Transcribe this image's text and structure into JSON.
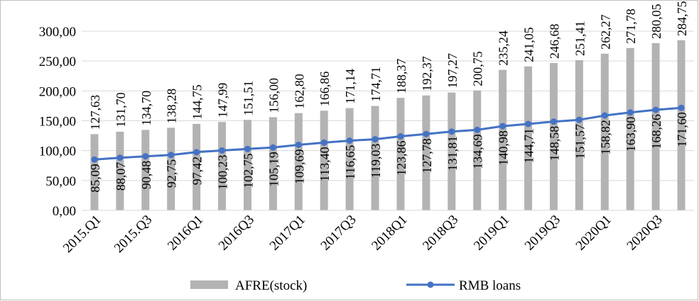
{
  "chart_data": {
    "type": "bar",
    "categories": [
      "2015.Q1",
      "2015.Q2",
      "2015.Q3",
      "2015.Q4",
      "2016Q1",
      "2016Q2",
      "2016Q3",
      "2016Q4",
      "2017Q1",
      "2017Q2",
      "2017Q3",
      "2017Q4",
      "2018Q1",
      "2018Q2",
      "2018Q3",
      "2018Q4",
      "2019Q1",
      "2019Q2",
      "2019Q3",
      "2019Q4",
      "2020Q1",
      "2020Q2",
      "2020Q3",
      "2020Q4"
    ],
    "x_tick_labels": [
      "2015.Q1",
      "2015.Q3",
      "2016Q1",
      "2016Q3",
      "2017Q1",
      "2017Q3",
      "2018Q1",
      "2018Q3",
      "2019Q1",
      "2019Q3",
      "2020Q1",
      "2020Q3"
    ],
    "series": [
      {
        "name": "AFRE(stock)",
        "type": "bar",
        "color": "#b3b3b3",
        "values": [
          127.63,
          131.7,
          134.7,
          138.28,
          144.75,
          147.99,
          151.51,
          156.0,
          162.8,
          166.86,
          171.14,
          174.71,
          188.37,
          192.37,
          197.27,
          200.75,
          235.24,
          241.05,
          246.68,
          251.41,
          262.27,
          271.78,
          280.05,
          284.75
        ],
        "labels": [
          "127,63",
          "131,70",
          "134,70",
          "138,28",
          "144,75",
          "147,99",
          "151,51",
          "156,00",
          "162,80",
          "166,86",
          "171,14",
          "174,71",
          "188,37",
          "192,37",
          "197,27",
          "200,75",
          "235,24",
          "241,05",
          "246,68",
          "251,41",
          "262,27",
          "271,78",
          "280,05",
          "284,75"
        ]
      },
      {
        "name": "RMB loans",
        "type": "line",
        "color": "#4472c4",
        "values": [
          85.09,
          88.07,
          90.48,
          92.75,
          97.42,
          100.23,
          102.75,
          105.19,
          109.69,
          113.4,
          116.65,
          119.03,
          123.86,
          127.78,
          131.81,
          134.69,
          140.98,
          144.71,
          148.58,
          151.57,
          158.82,
          163.9,
          168.26,
          171.6
        ],
        "labels": [
          "85,09",
          "88,07",
          "90,48",
          "92,75",
          "97,42",
          "100,23",
          "102,75",
          "105,19",
          "109,69",
          "113,40",
          "116,65",
          "119,03",
          "123,86",
          "127,78",
          "131,81",
          "134,69",
          "140,98",
          "144,71",
          "148,58",
          "151,57",
          "158,82",
          "163,90",
          "168,26",
          "171,60"
        ]
      }
    ],
    "y_ticks": [
      0,
      50,
      100,
      150,
      200,
      250,
      300
    ],
    "y_tick_labels": [
      "0,00",
      "50,00",
      "100,00",
      "150,00",
      "200,00",
      "250,00",
      "300,00"
    ],
    "ylim": [
      0,
      300
    ],
    "grid": true,
    "legend_position": "bottom",
    "title": "",
    "xlabel": "",
    "ylabel": ""
  }
}
